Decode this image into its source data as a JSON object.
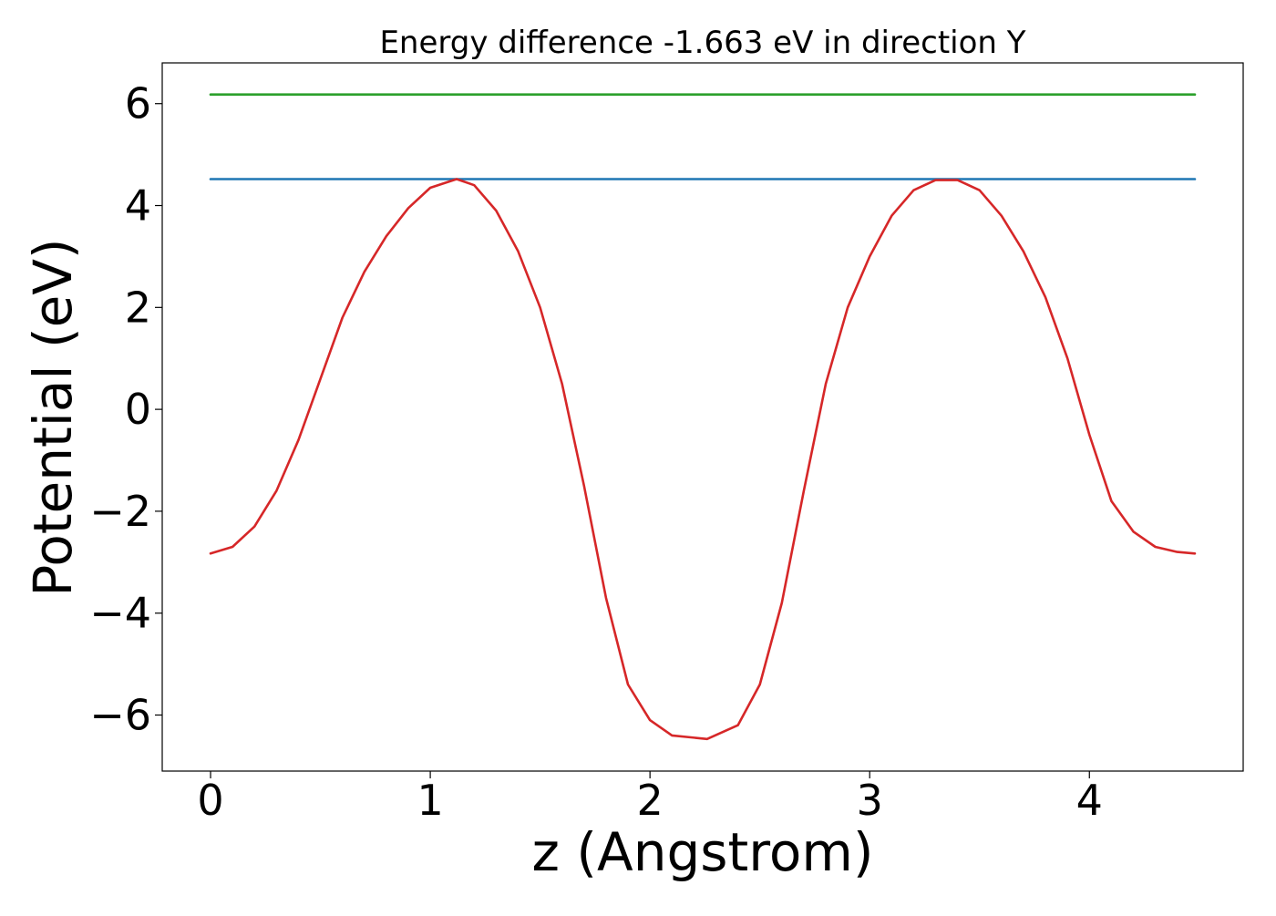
{
  "chart_data": {
    "type": "line",
    "title": "Energy difference -1.663 eV in direction Y",
    "xlabel": "z (Angstrom)",
    "ylabel": "Potential (eV)",
    "xlim": [
      -0.22,
      4.7
    ],
    "ylim": [
      -7.1,
      6.8
    ],
    "xticks": [
      0,
      1,
      2,
      3,
      4
    ],
    "xtick_labels": [
      "0",
      "1",
      "2",
      "3",
      "4"
    ],
    "yticks": [
      -6,
      -4,
      -2,
      0,
      2,
      4,
      6
    ],
    "ytick_labels": [
      "−6",
      "−4",
      "−2",
      "0",
      "2",
      "4",
      "6"
    ],
    "grid": false,
    "legend": "none",
    "series": [
      {
        "color": "#2ca02c",
        "x": [
          0,
          4.48
        ],
        "y": [
          6.18,
          6.18
        ]
      },
      {
        "color": "#1f77b4",
        "x": [
          0,
          4.48
        ],
        "y": [
          4.52,
          4.52
        ]
      },
      {
        "color": "#d62728",
        "x": [
          0,
          0.1,
          0.2,
          0.3,
          0.4,
          0.5,
          0.6,
          0.7,
          0.8,
          0.9,
          1.0,
          1.12,
          1.2,
          1.3,
          1.4,
          1.5,
          1.6,
          1.7,
          1.8,
          1.9,
          2.0,
          2.1,
          2.26,
          2.4,
          2.5,
          2.6,
          2.7,
          2.8,
          2.9,
          3.0,
          3.1,
          3.2,
          3.3,
          3.4,
          3.5,
          3.6,
          3.7,
          3.8,
          3.9,
          4.0,
          4.1,
          4.2,
          4.3,
          4.4,
          4.48
        ],
        "y": [
          -2.83,
          -2.7,
          -2.3,
          -1.6,
          -0.6,
          0.6,
          1.8,
          2.7,
          3.4,
          3.95,
          4.35,
          4.52,
          4.4,
          3.9,
          3.1,
          2.0,
          0.5,
          -1.5,
          -3.7,
          -5.4,
          -6.1,
          -6.4,
          -6.47,
          -6.2,
          -5.4,
          -3.8,
          -1.6,
          0.5,
          2.0,
          3.0,
          3.8,
          4.3,
          4.5,
          4.5,
          4.3,
          3.8,
          3.1,
          2.2,
          1.0,
          -0.5,
          -1.8,
          -2.4,
          -2.7,
          -2.8,
          -2.83
        ]
      }
    ]
  }
}
